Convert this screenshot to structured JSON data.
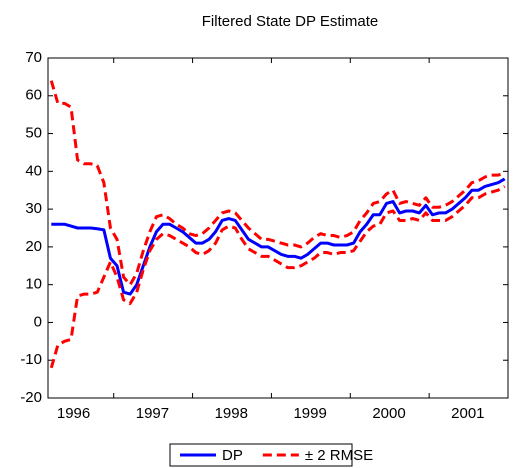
{
  "chart_data": {
    "type": "line",
    "title": "Filtered State DP Estimate",
    "categories": [
      null,
      null,
      null,
      null,
      "1996",
      null,
      null,
      null,
      null,
      null,
      null,
      null,
      null,
      null,
      null,
      null,
      "1997",
      null,
      null,
      null,
      null,
      null,
      null,
      null,
      null,
      null,
      null,
      null,
      "1998",
      null,
      null,
      null,
      null,
      null,
      null,
      null,
      null,
      null,
      null,
      null,
      "1999",
      null,
      null,
      null,
      null,
      null,
      null,
      null,
      null,
      null,
      null,
      null,
      "2000",
      null,
      null,
      null,
      null,
      null,
      null,
      null,
      null,
      null,
      null,
      null,
      "2001",
      null,
      null,
      null,
      null,
      null
    ],
    "series": [
      {
        "name": "DP",
        "color": "#0000ff",
        "dashed": false,
        "values": [
          26,
          26,
          26,
          25.5,
          25,
          25,
          25,
          24.8,
          24.5,
          17,
          15,
          8,
          7.5,
          10,
          15,
          20,
          24,
          26,
          26,
          25,
          24,
          22.5,
          21,
          21,
          22,
          24,
          27,
          27.5,
          27,
          24.5,
          22,
          21,
          20,
          20,
          19,
          18,
          17.5,
          17.5,
          17,
          18,
          19.5,
          21,
          21,
          20.5,
          20.5,
          20.5,
          21,
          24,
          26,
          28.5,
          28.5,
          31.5,
          32,
          29,
          29.5,
          29.5,
          29,
          31,
          28.5,
          29,
          29,
          30,
          31.5,
          33,
          35,
          35,
          36,
          36.5,
          37,
          38
        ]
      },
      {
        "name": "± 2 RMSE",
        "color": "#ff0000",
        "dashed": true,
        "values": [
          64,
          58,
          58,
          57,
          43,
          42,
          42,
          41.5,
          37,
          25,
          22,
          12,
          10,
          13,
          19,
          24,
          28,
          28.5,
          27.5,
          26,
          25,
          23.5,
          23,
          23.5,
          25,
          27,
          29,
          29.5,
          29,
          27,
          25,
          23.5,
          22,
          22,
          21.5,
          21,
          20.5,
          20.5,
          20,
          21,
          22.5,
          23.5,
          23,
          23,
          22.5,
          23,
          24,
          27,
          29,
          31.5,
          32,
          34,
          35,
          31.5,
          32,
          31.5,
          31,
          33,
          30.5,
          30.5,
          31,
          32,
          33.5,
          35,
          37,
          37.5,
          38.5,
          39,
          39,
          39.5
        ]
      },
      {
        "color": "#ff0000",
        "dashed": true,
        "values": [
          -12,
          -6,
          -5,
          -4.5,
          7,
          7.5,
          7.5,
          8,
          12,
          16,
          12,
          6,
          5,
          8,
          14,
          19,
          22,
          23.5,
          23,
          22,
          21,
          20,
          18.5,
          18,
          19,
          21,
          24.5,
          25.5,
          25,
          22,
          19.5,
          18.5,
          17.5,
          17.5,
          16.5,
          15.5,
          14.5,
          14.5,
          15,
          16,
          17,
          18.5,
          18.5,
          18,
          18.5,
          18.5,
          19,
          21.5,
          24,
          25.5,
          26,
          29,
          29.5,
          27,
          27,
          27.5,
          27,
          29,
          27,
          27,
          27,
          28,
          29.5,
          31,
          33,
          33,
          34,
          34.5,
          35,
          36
        ]
      }
    ],
    "ylim": [
      -20,
      70
    ],
    "yticks": [
      -20,
      -10,
      0,
      10,
      20,
      30,
      40,
      50,
      60,
      70
    ],
    "grid": false
  }
}
